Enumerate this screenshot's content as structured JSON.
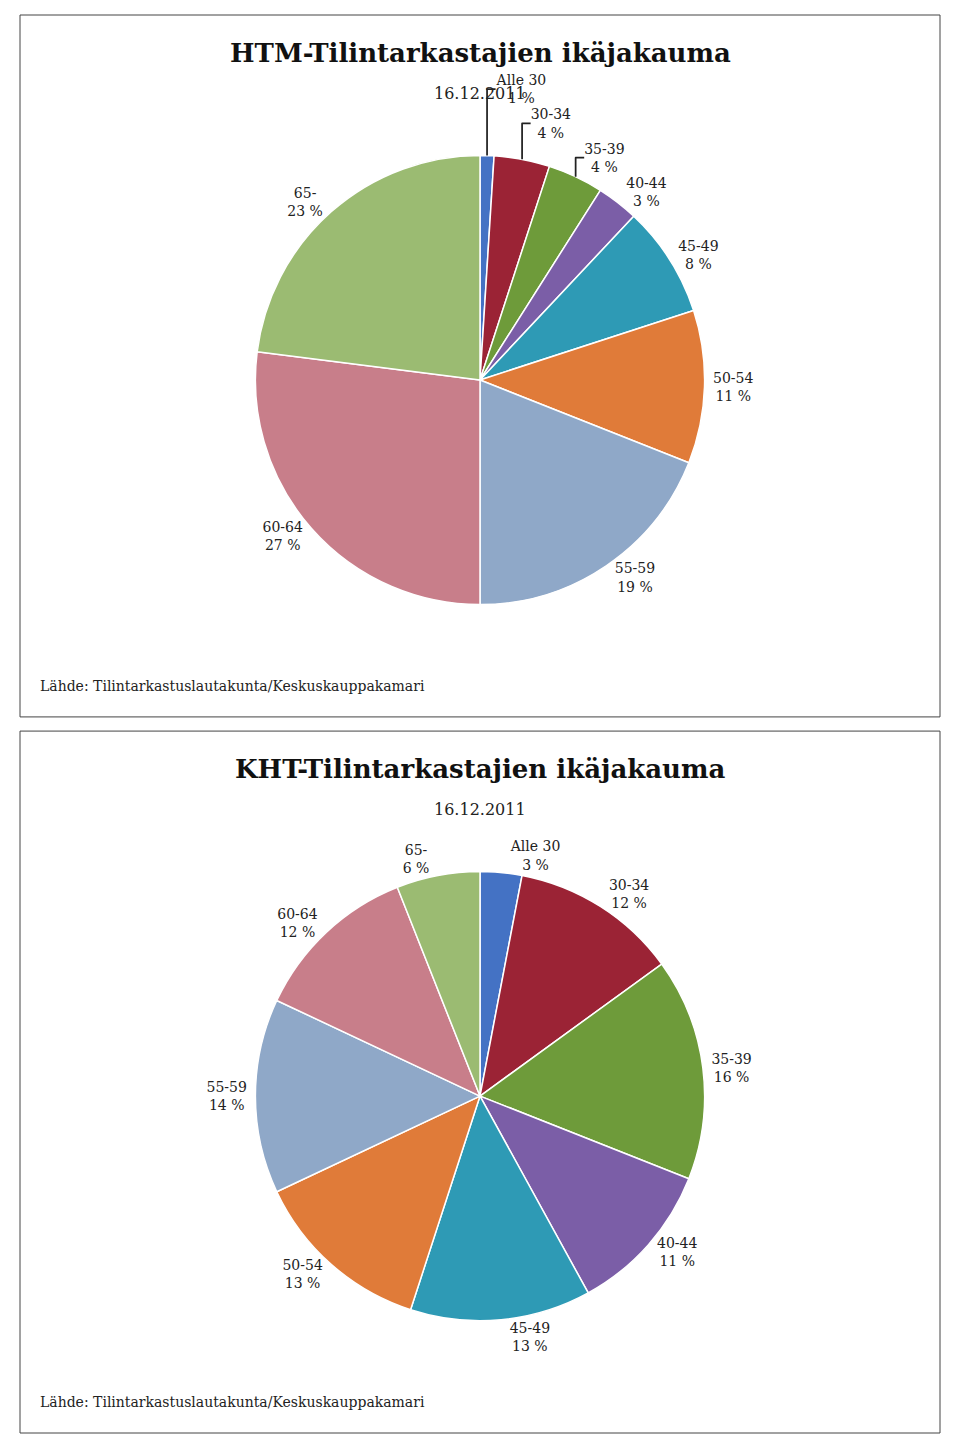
{
  "chart_data": [
    {
      "type": "pie",
      "title": "HTM-Tilintarkastajien ikäjakauma",
      "subtitle": "16.12.2011",
      "annotations": [
        "Lähde: Tilintarkastuslautakunta/Keskuskauppakamari"
      ],
      "categories": [
        "Alle 30",
        "30-34",
        "35-39",
        "40-44",
        "45-49",
        "50-54",
        "55-59",
        "60-64",
        "65-"
      ],
      "values": [
        1,
        4,
        4,
        3,
        8,
        11,
        19,
        27,
        23
      ],
      "value_labels": [
        "1 %",
        "4 %",
        "4 %",
        "3 %",
        "8 %",
        "11 %",
        "19 %",
        "27 %",
        "23 %"
      ],
      "data_labels": true,
      "colors": [
        "#4472C4",
        "#9B2335",
        "#6E9B3A",
        "#7B5EA7",
        "#2E9AB5",
        "#E07B39",
        "#8FA8C8",
        "#C87E8A",
        "#9BBB72"
      ]
    },
    {
      "type": "pie",
      "title": "KHT-Tilintarkastajien ikäjakauma",
      "subtitle": "16.12.2011",
      "annotations": [
        "Lähde: Tilintarkastuslautakunta/Keskuskauppakamari"
      ],
      "categories": [
        "Alle 30",
        "30-34",
        "35-39",
        "40-44",
        "45-49",
        "50-54",
        "55-59",
        "60-64",
        "65-"
      ],
      "values": [
        3,
        12,
        16,
        11,
        13,
        13,
        14,
        12,
        6
      ],
      "value_labels": [
        "3 %",
        "12 %",
        "16 %",
        "11 %",
        "13 %",
        "13 %",
        "14 %",
        "12 %",
        "6 %"
      ],
      "data_labels": true,
      "colors": [
        "#4472C4",
        "#9B2335",
        "#6E9B3A",
        "#7B5EA7",
        "#2E9AB5",
        "#E07B39",
        "#8FA8C8",
        "#C87E8A",
        "#9BBB72"
      ]
    }
  ]
}
